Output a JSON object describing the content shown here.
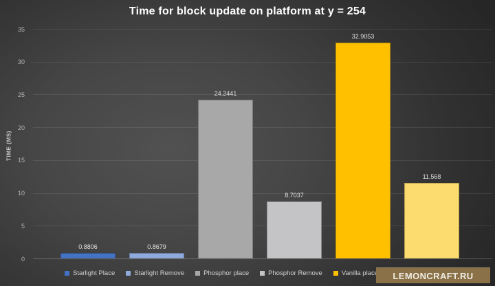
{
  "chart_data": {
    "type": "bar",
    "title": "Time for block update on platform at y = 254",
    "ylabel": "TIME (MS)",
    "ylim": [
      0,
      35
    ],
    "yticks": [
      0,
      5,
      10,
      15,
      20,
      25,
      30,
      35
    ],
    "grid": true,
    "legend_position": "bottom",
    "series": [
      {
        "name": "Starlight Place",
        "value": 0.8806,
        "value_label": "0.8806",
        "color": "#4472c4"
      },
      {
        "name": "Starlight Remove",
        "value": 0.8679,
        "value_label": "0.8679",
        "color": "#8faadc"
      },
      {
        "name": "Phosphor place",
        "value": 24.2441,
        "value_label": "24.2441",
        "color": "#a8a8a8"
      },
      {
        "name": "Phosphor Remove",
        "value": 8.7037,
        "value_label": "8.7037",
        "color": "#c4c4c6"
      },
      {
        "name": "Vanilla place",
        "value": 32.9053,
        "value_label": "32.9053",
        "color": "#ffc000"
      },
      {
        "name": "",
        "value": 11.568,
        "value_label": "11.568",
        "color": "#fcdc6e",
        "legend_label_obscured": true
      }
    ]
  },
  "watermark": {
    "text": "LEMONCRAFT.RU",
    "bg_color": "#8a7148",
    "text_color": "#f0ede5"
  }
}
